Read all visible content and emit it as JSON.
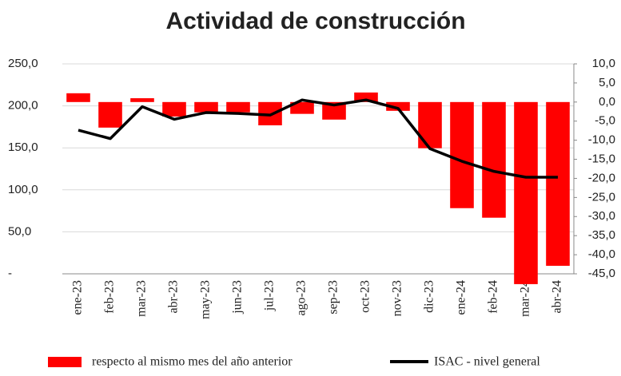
{
  "chart_data": {
    "type": "bar_line",
    "title": "Actividad de construcción",
    "categories": [
      "ene-23",
      "feb-23",
      "mar-23",
      "abr-23",
      "may-23",
      "jun-23",
      "jul-23",
      "ago-23",
      "sep-23",
      "oct-23",
      "nov-23",
      "dic-23",
      "ene-24",
      "feb-24",
      "mar-24",
      "abr-24"
    ],
    "series": [
      {
        "name": "respecto al mismo mes del año anterior",
        "type": "bar",
        "axis": "y2",
        "color": "#ff0000",
        "values": [
          2.3,
          -6.7,
          1.0,
          -3.8,
          -2.7,
          -2.7,
          -6.1,
          -3.1,
          -4.6,
          2.5,
          -2.3,
          -12.1,
          -27.8,
          -30.3,
          -47.7,
          -42.9
        ]
      },
      {
        "name": "ISAC - nivel general",
        "type": "line",
        "axis": "y",
        "color": "#000000",
        "values": [
          171,
          161,
          199,
          184,
          192,
          191,
          189,
          207,
          201,
          207,
          197,
          149,
          134,
          122,
          115,
          115
        ]
      }
    ],
    "ylim": [
      0,
      250
    ],
    "yticks": [
      {
        "value": 0,
        "label": "-"
      },
      {
        "value": 50,
        "label": "50,0"
      },
      {
        "value": 100,
        "label": "100,0"
      },
      {
        "value": 150,
        "label": "150,0"
      },
      {
        "value": 200,
        "label": "200,0"
      },
      {
        "value": 250,
        "label": "250,0"
      }
    ],
    "y2lim": [
      -45,
      10
    ],
    "y2ticks": [
      {
        "value": 10,
        "label": "10,0"
      },
      {
        "value": 5,
        "label": "5,0"
      },
      {
        "value": 0,
        "label": "0,0"
      },
      {
        "value": -5,
        "label": "-5,0"
      },
      {
        "value": -10,
        "label": "-10,0"
      },
      {
        "value": -15,
        "label": "-15,0"
      },
      {
        "value": -20,
        "label": "-20,0"
      },
      {
        "value": -25,
        "label": "-25,0"
      },
      {
        "value": -30,
        "label": "-30,0"
      },
      {
        "value": -35,
        "label": "-35,0"
      },
      {
        "value": -40,
        "label": "-40,0"
      },
      {
        "value": -45,
        "label": "-45,0"
      }
    ],
    "grid": true
  }
}
